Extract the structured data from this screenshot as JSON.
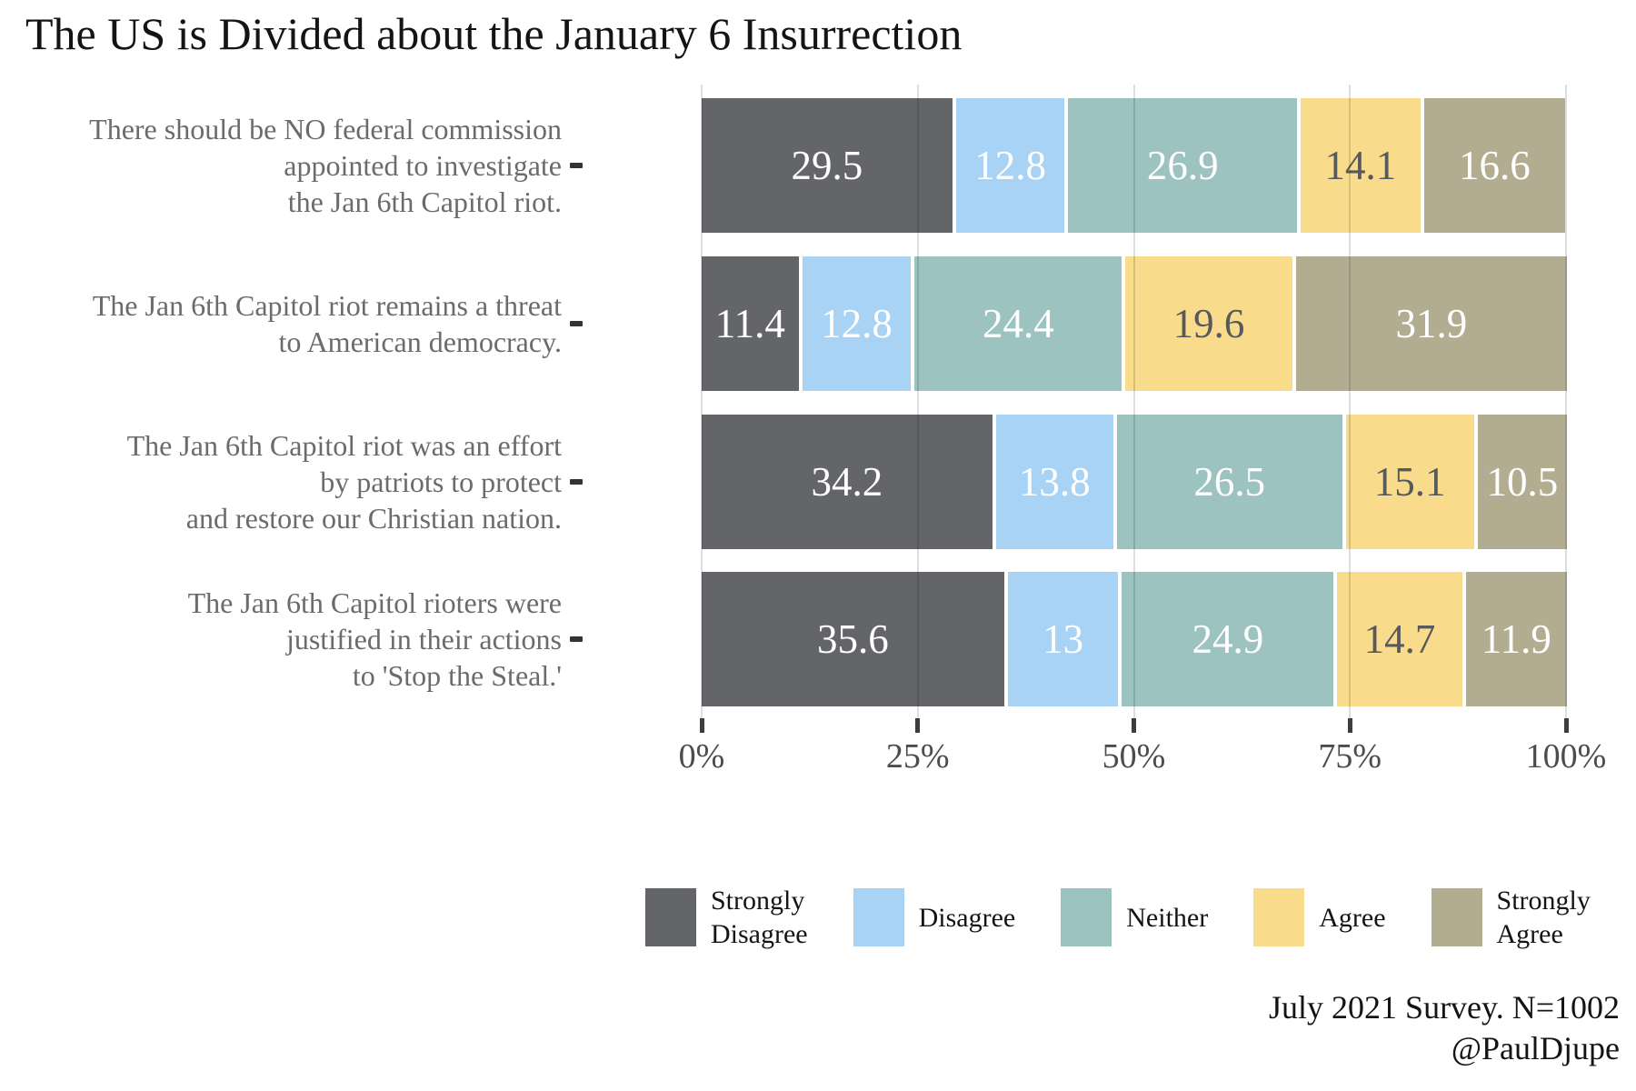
{
  "title": "The US is Divided about the January 6 Insurrection",
  "chart_data": {
    "type": "bar",
    "stacked": true,
    "orientation": "horizontal",
    "title": "The US is Divided about the January 6 Insurrection",
    "categories": [
      "There should be NO federal commission appointed to investigate the Jan 6th Capitol riot.",
      "The Jan 6th Capitol riot remains a threat to American democracy.",
      "The Jan 6th Capitol riot was an effort by patriots to protect and restore our Christian nation.",
      "The Jan 6th Capitol rioters were justified in their actions to 'Stop the Steal.'"
    ],
    "series": [
      {
        "name": "Strongly Disagree",
        "color": "#646569",
        "values": [
          29.5,
          11.4,
          34.2,
          35.6
        ]
      },
      {
        "name": "Disagree",
        "color": "#a8d3f5",
        "values": [
          12.8,
          12.8,
          13.8,
          13
        ]
      },
      {
        "name": "Neither",
        "color": "#9dc3c1",
        "values": [
          26.9,
          24.4,
          26.5,
          24.9
        ]
      },
      {
        "name": "Agree",
        "color": "#f8dc8c",
        "values": [
          14.1,
          19.6,
          15.1,
          14.7
        ]
      },
      {
        "name": "Strongly Agree",
        "color": "#b2ad90",
        "values": [
          16.6,
          31.9,
          10.5,
          11.9
        ]
      }
    ],
    "xlim": [
      0,
      100
    ],
    "x_tick_labels": [
      "0%",
      "25%",
      "50%",
      "75%",
      "100%"
    ],
    "grid": true,
    "legend_position": "bottom",
    "value_labels_shown": true,
    "caption": "July 2021 Survey. N=1002 @PaulDjupe"
  },
  "rows": [
    {
      "label_lines": [
        "There should be NO federal commission",
        "appointed to investigate",
        "the Jan 6th Capitol riot."
      ],
      "values": [
        29.5,
        12.8,
        26.9,
        14.1,
        16.6
      ],
      "value_labels": [
        "29.5",
        "12.8",
        "26.9",
        "14.1",
        "16.6"
      ]
    },
    {
      "label_lines": [
        "The Jan 6th Capitol riot remains a threat",
        "to American democracy."
      ],
      "values": [
        11.4,
        12.8,
        24.4,
        19.6,
        31.9
      ],
      "value_labels": [
        "11.4",
        "12.8",
        "24.4",
        "19.6",
        "31.9"
      ]
    },
    {
      "label_lines": [
        "The Jan 6th Capitol riot was an effort",
        "by patriots to protect",
        "and restore our Christian nation."
      ],
      "values": [
        34.2,
        13.8,
        26.5,
        15.1,
        10.5
      ],
      "value_labels": [
        "34.2",
        "13.8",
        "26.5",
        "15.1",
        "10.5"
      ]
    },
    {
      "label_lines": [
        "The Jan 6th Capitol rioters were",
        "justified in their actions",
        "to 'Stop the Steal.'"
      ],
      "values": [
        35.6,
        13,
        24.9,
        14.7,
        11.9
      ],
      "value_labels": [
        "35.6",
        "13",
        "24.9",
        "14.7",
        "11.9"
      ]
    }
  ],
  "legend": {
    "items": [
      {
        "key": "strongly-disagree",
        "label_lines": [
          "Strongly",
          "Disagree"
        ],
        "color": "#646569",
        "value_text_color": "#ffffff"
      },
      {
        "key": "disagree",
        "label_lines": [
          "Disagree"
        ],
        "color": "#a8d3f5",
        "value_text_color": "#ffffff"
      },
      {
        "key": "neither",
        "label_lines": [
          "Neither"
        ],
        "color": "#9dc3c1",
        "value_text_color": "#ffffff"
      },
      {
        "key": "agree",
        "label_lines": [
          "Agree"
        ],
        "color": "#f8dc8c",
        "value_text_color": "#58595c"
      },
      {
        "key": "strongly-agree",
        "label_lines": [
          "Strongly",
          "Agree"
        ],
        "color": "#b2ad90",
        "value_text_color": "#ffffff"
      }
    ]
  },
  "axis": {
    "ticks": [
      {
        "label": "0%",
        "pct": 0
      },
      {
        "label": "25%",
        "pct": 25
      },
      {
        "label": "50%",
        "pct": 50
      },
      {
        "label": "75%",
        "pct": 75
      },
      {
        "label": "100%",
        "pct": 100
      }
    ]
  },
  "caption": {
    "lines": [
      "July 2021 Survey. N=1002",
      "@PaulDjupe"
    ]
  }
}
